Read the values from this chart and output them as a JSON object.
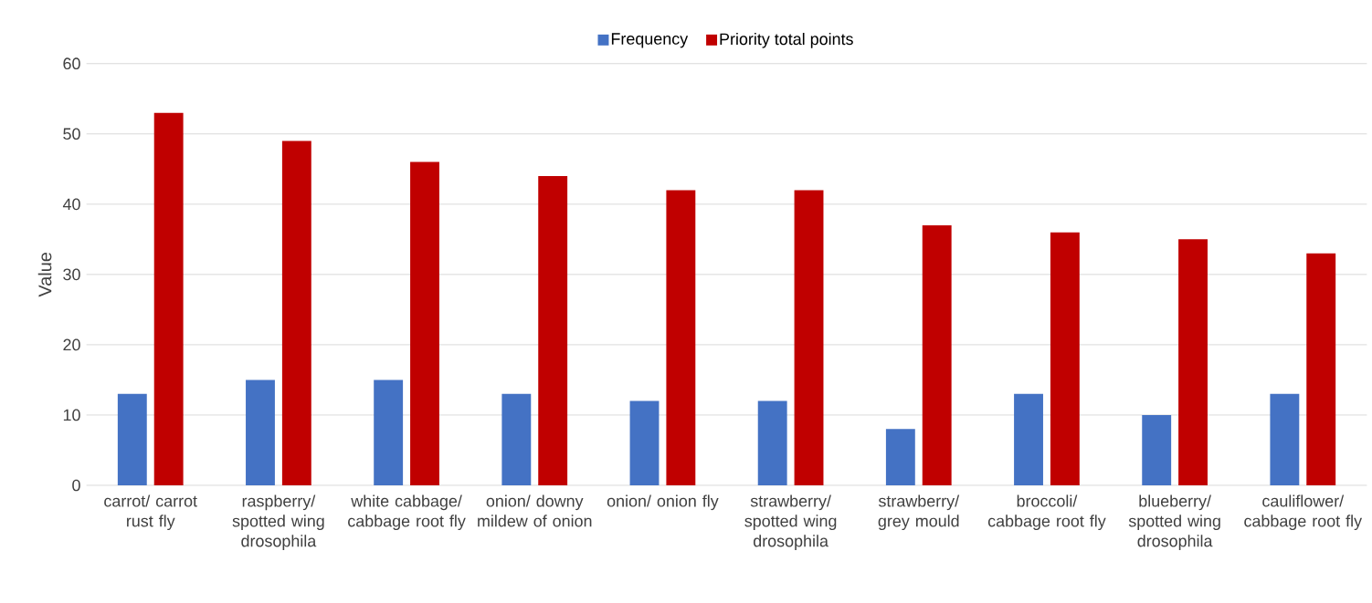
{
  "chart_data": {
    "type": "bar",
    "ylabel": "Value",
    "categories": [
      "carrot/ carrot rust fly",
      "raspberry/ spotted wing drosophila",
      "white cabbage/ cabbage root fly",
      "onion/ downy mildew of onion",
      "onion/ onion fly",
      "strawberry/ spotted wing drosophila",
      "strawberry/ grey mould",
      "broccoli/ cabbage root fly",
      "blueberry/ spotted wing drosophila",
      "cauliflower/ cabbage root fly"
    ],
    "series": [
      {
        "name": "Frequency",
        "color": "#4472c4",
        "values": [
          13,
          15,
          15,
          13,
          12,
          12,
          8,
          13,
          10,
          13
        ]
      },
      {
        "name": "Priority total points",
        "color": "#c00000",
        "values": [
          53,
          49,
          46,
          44,
          42,
          42,
          37,
          36,
          35,
          33
        ]
      }
    ],
    "ylim": [
      0,
      60
    ],
    "yticks": [
      0,
      10,
      20,
      30,
      40,
      50,
      60
    ],
    "grid": "y",
    "legend": "top"
  }
}
